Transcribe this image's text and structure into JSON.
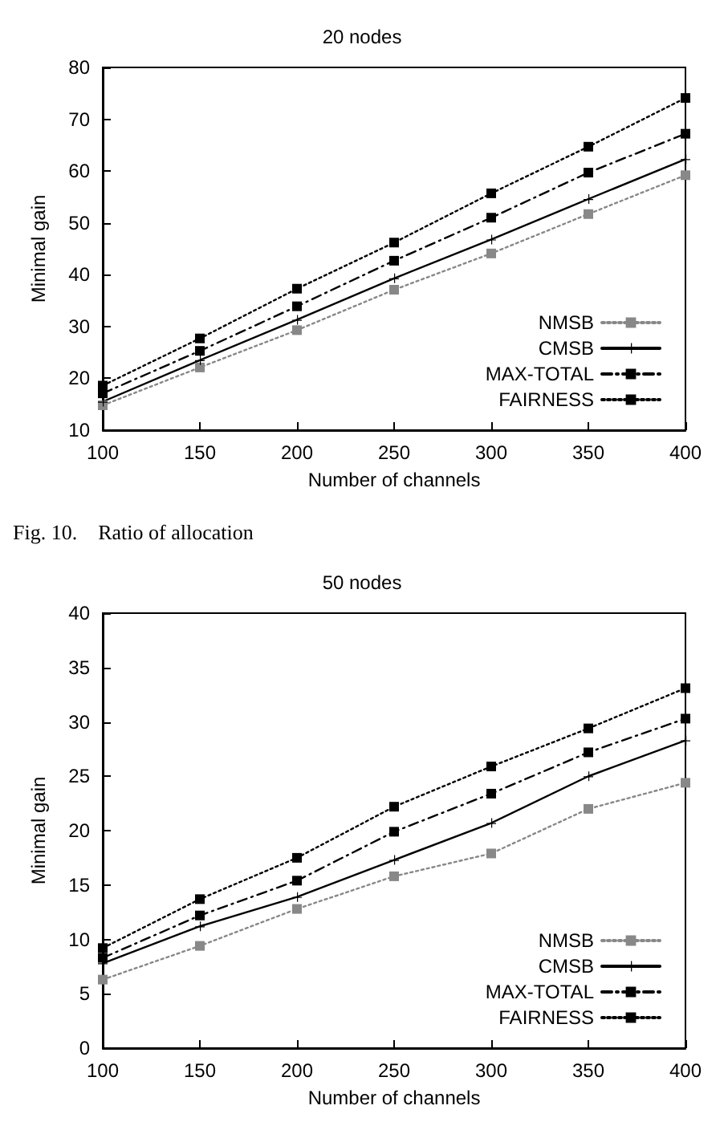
{
  "chart_data": [
    {
      "type": "line",
      "title": "20 nodes",
      "xlabel": "Number of channels",
      "ylabel": "Minimal gain",
      "x": [
        100,
        150,
        200,
        250,
        300,
        350,
        400
      ],
      "xlim": [
        100,
        400
      ],
      "xticks": [
        100,
        150,
        200,
        250,
        300,
        350,
        400
      ],
      "ylim": [
        10,
        80
      ],
      "yticks": [
        10,
        20,
        30,
        40,
        50,
        60,
        70,
        80
      ],
      "grid": false,
      "legend": "bottom right",
      "annotations": [
        "Fig. 10.    Ratio of allocation"
      ],
      "series": [
        {
          "name": "NMSB",
          "color": "#888888",
          "marker": "square",
          "line_style": "dotted",
          "values": [
            14.8,
            22.1,
            29.3,
            37.1,
            44.1,
            51.7,
            59.2
          ]
        },
        {
          "name": "CMSB",
          "color": "#000000",
          "marker": "cross",
          "line_style": "solid",
          "values": [
            15.5,
            23.5,
            31.3,
            39.3,
            46.8,
            54.6,
            62.3
          ]
        },
        {
          "name": "MAX-TOTAL",
          "color": "#000000",
          "marker": "square",
          "line_style": "dashed",
          "values": [
            17.1,
            25.3,
            33.9,
            42.7,
            51.0,
            59.7,
            67.2
          ]
        },
        {
          "name": "FAIRNESS",
          "color": "#000000",
          "marker": "square",
          "line_style": "dotted",
          "values": [
            18.6,
            27.7,
            37.3,
            46.2,
            55.7,
            64.7,
            74.1
          ]
        }
      ]
    },
    {
      "type": "line",
      "title": "50 nodes",
      "xlabel": "Number of channels",
      "ylabel": "Minimal gain",
      "x": [
        100,
        150,
        200,
        250,
        300,
        350,
        400
      ],
      "xlim": [
        100,
        400
      ],
      "xticks": [
        100,
        150,
        200,
        250,
        300,
        350,
        400
      ],
      "ylim": [
        0,
        40
      ],
      "yticks": [
        0,
        5,
        10,
        15,
        20,
        25,
        30,
        35,
        40
      ],
      "grid": false,
      "legend": "bottom right",
      "series": [
        {
          "name": "NMSB",
          "color": "#888888",
          "marker": "square",
          "line_style": "dotted",
          "values": [
            6.3,
            9.4,
            12.8,
            15.8,
            17.9,
            22.0,
            24.4
          ]
        },
        {
          "name": "CMSB",
          "color": "#000000",
          "marker": "cross",
          "line_style": "solid",
          "values": [
            7.8,
            11.2,
            13.9,
            17.3,
            20.7,
            25.0,
            28.3
          ]
        },
        {
          "name": "MAX-TOTAL",
          "color": "#000000",
          "marker": "square",
          "line_style": "dashed",
          "values": [
            8.3,
            12.2,
            15.4,
            19.9,
            23.4,
            27.2,
            30.3
          ]
        },
        {
          "name": "FAIRNESS",
          "color": "#000000",
          "marker": "square",
          "line_style": "dotted",
          "values": [
            9.2,
            13.7,
            17.5,
            22.2,
            25.9,
            29.4,
            33.1
          ]
        }
      ]
    }
  ]
}
